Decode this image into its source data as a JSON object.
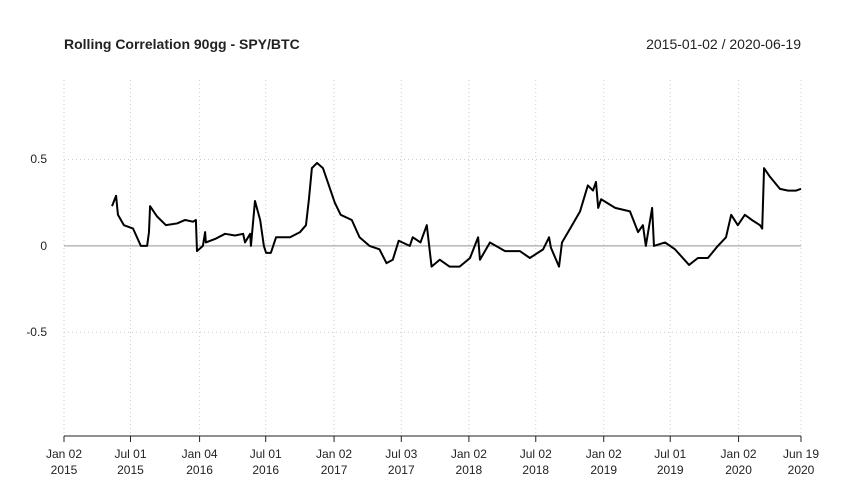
{
  "chart_data": {
    "type": "line",
    "title": "Rolling Correlation 90gg - SPY/BTC",
    "subtitle": "2015-01-02 / 2020-06-19",
    "color": "#000000",
    "grid": true,
    "hline": 0,
    "xlim": [
      "2015-01-02",
      "2020-06-19"
    ],
    "ylim": [
      -1.1,
      0.96
    ],
    "yticks": [
      -0.5,
      0,
      0.5
    ],
    "xticks": [
      {
        "value": "2015-01-02",
        "label": "Jan 02\n2015"
      },
      {
        "value": "2015-07-01",
        "label": "Jul 01\n2015"
      },
      {
        "value": "2016-01-04",
        "label": "Jan 04\n2016"
      },
      {
        "value": "2016-07-01",
        "label": "Jul 01\n2016"
      },
      {
        "value": "2017-01-02",
        "label": "Jan 02\n2017"
      },
      {
        "value": "2017-07-03",
        "label": "Jul 03\n2017"
      },
      {
        "value": "2018-01-02",
        "label": "Jan 02\n2018"
      },
      {
        "value": "2018-07-02",
        "label": "Jul 02\n2018"
      },
      {
        "value": "2019-01-02",
        "label": "Jan 02\n2019"
      },
      {
        "value": "2019-07-01",
        "label": "Jul 01\n2019"
      },
      {
        "value": "2020-01-02",
        "label": "Jan 02\n2020"
      },
      {
        "value": "2020-06-19",
        "label": "Jun 19\n2020"
      }
    ],
    "x": [
      "2015-05-12",
      "2015-05-23",
      "2015-05-28",
      "2015-06-13",
      "2015-07-08",
      "2015-07-29",
      "2015-08-15",
      "2015-08-20",
      "2015-08-23",
      "2015-09-11",
      "2015-10-05",
      "2015-11-04",
      "2015-11-26",
      "2015-12-17",
      "2015-12-25",
      "2015-12-28",
      "2016-01-13",
      "2016-01-19",
      "2016-01-21",
      "2016-02-15",
      "2016-03-13",
      "2016-04-09",
      "2016-05-01",
      "2016-05-06",
      "2016-05-20",
      "2016-05-22",
      "2016-06-02",
      "2016-06-16",
      "2016-06-26",
      "2016-07-02",
      "2016-07-15",
      "2016-07-29",
      "2016-09-05",
      "2016-10-02",
      "2016-10-18",
      "2016-10-26",
      "2016-11-03",
      "2016-11-17",
      "2016-12-03",
      "2016-12-19",
      "2017-01-04",
      "2017-01-20",
      "2017-02-19",
      "2017-03-12",
      "2017-04-08",
      "2017-05-05",
      "2017-05-24",
      "2017-06-10",
      "2017-06-26",
      "2017-07-26",
      "2017-08-03",
      "2017-08-24",
      "2017-09-10",
      "2017-09-23",
      "2017-10-15",
      "2017-11-11",
      "2017-12-08",
      "2018-01-05",
      "2018-01-27",
      "2018-02-01",
      "2018-02-28",
      "2018-04-10",
      "2018-05-20",
      "2018-06-16",
      "2018-07-22",
      "2018-08-07",
      "2018-08-12",
      "2018-09-03",
      "2018-09-11",
      "2018-10-03",
      "2018-10-30",
      "2018-11-20",
      "2018-12-04",
      "2018-12-12",
      "2018-12-18",
      "2018-12-26",
      "2019-02-02",
      "2019-03-14",
      "2019-04-05",
      "2019-04-18",
      "2019-04-26",
      "2019-05-13",
      "2019-05-18",
      "2019-06-17",
      "2019-07-14",
      "2019-08-21",
      "2019-09-14",
      "2019-10-11",
      "2019-11-07",
      "2019-11-29",
      "2019-12-13",
      "2019-12-31",
      "2020-01-19",
      "2020-02-07",
      "2020-02-29",
      "2020-03-06",
      "2020-03-11",
      "2020-03-27",
      "2020-04-23",
      "2020-05-15",
      "2020-06-06",
      "2020-06-19"
    ],
    "values": [
      0.23,
      0.29,
      0.18,
      0.12,
      0.1,
      0.0,
      0.0,
      0.08,
      0.23,
      0.17,
      0.12,
      0.13,
      0.15,
      0.14,
      0.15,
      -0.03,
      0.0,
      0.08,
      0.02,
      0.04,
      0.07,
      0.06,
      0.07,
      0.02,
      0.07,
      0.0,
      0.26,
      0.15,
      0.0,
      -0.04,
      -0.04,
      0.05,
      0.05,
      0.08,
      0.12,
      0.27,
      0.45,
      0.48,
      0.45,
      0.35,
      0.25,
      0.18,
      0.15,
      0.05,
      0.0,
      -0.02,
      -0.1,
      -0.08,
      0.03,
      0.0,
      0.05,
      0.02,
      0.12,
      -0.12,
      -0.08,
      -0.12,
      -0.12,
      -0.07,
      0.05,
      -0.08,
      0.02,
      -0.03,
      -0.03,
      -0.07,
      -0.02,
      0.05,
      -0.01,
      -0.12,
      0.02,
      0.1,
      0.2,
      0.35,
      0.32,
      0.37,
      0.22,
      0.27,
      0.22,
      0.2,
      0.08,
      0.12,
      0.0,
      0.22,
      0.0,
      0.02,
      -0.02,
      -0.11,
      -0.07,
      -0.07,
      0.0,
      0.05,
      0.18,
      0.12,
      0.18,
      0.15,
      0.12,
      0.1,
      0.45,
      0.4,
      0.33,
      0.32,
      0.32,
      0.33
    ]
  }
}
